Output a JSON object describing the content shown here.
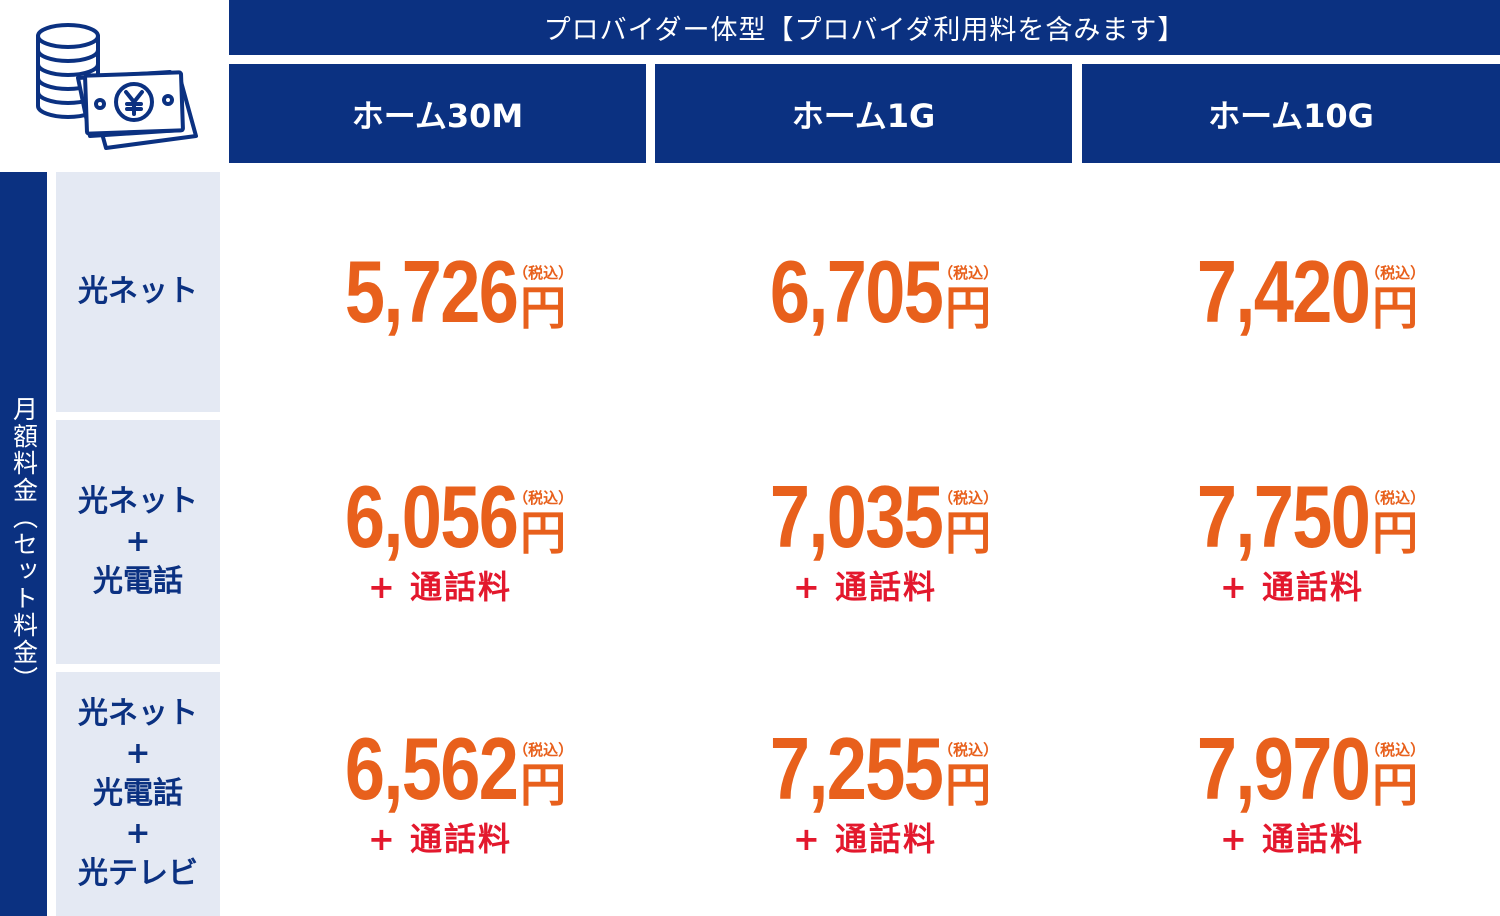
{
  "header": {
    "provider_title": "プロバイダー体型【プロバイダ利用料を含みます】",
    "plans": [
      "ホーム30M",
      "ホーム1G",
      "ホーム10G"
    ]
  },
  "side_label": "月額料金（セット料金）",
  "rows": [
    {
      "label_lines": [
        "光ネット"
      ],
      "prices": [
        "5,726",
        "6,705",
        "7,420"
      ],
      "extra": ""
    },
    {
      "label_lines": [
        "光ネット",
        "+",
        "光電話"
      ],
      "prices": [
        "6,056",
        "7,035",
        "7,750"
      ],
      "extra": "+ 通話料"
    },
    {
      "label_lines": [
        "光ネット",
        "+",
        "光電話",
        "+",
        "光テレビ"
      ],
      "prices": [
        "6,562",
        "7,255",
        "7,970"
      ],
      "extra": "+ 通話料"
    }
  ],
  "tax_note": "（税込）",
  "currency": "円",
  "colors": {
    "navy": "#0b3181",
    "price_orange": "#e8601c",
    "call_red": "#e3182d",
    "label_bg": "#e4e9f3"
  },
  "icons": [
    "coins-and-yen-bill-icon"
  ]
}
